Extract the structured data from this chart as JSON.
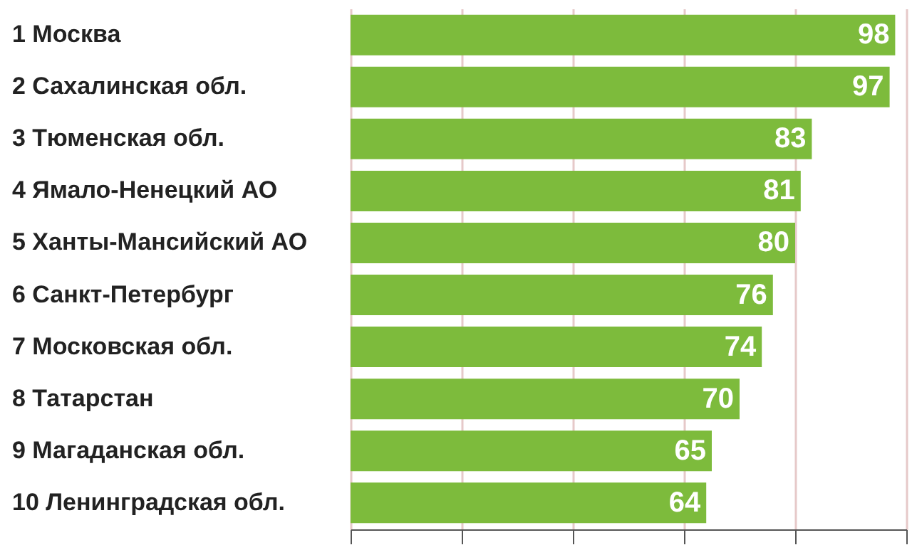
{
  "chart_data": {
    "type": "bar",
    "orientation": "horizontal",
    "categories": [
      "1  Москва",
      "2  Сахалинская обл.",
      "3  Тюменская обл.",
      "4  Ямало-Ненецкий АО",
      "5  Ханты-Мансийский АО",
      "6  Санкт-Петербург",
      "7  Московская обл.",
      "8  Татарстан",
      "9  Магаданская обл.",
      "10  Ленинградская обл."
    ],
    "values": [
      98,
      97,
      83,
      81,
      80,
      76,
      74,
      70,
      65,
      64
    ],
    "color": "#7dbb3c",
    "xlim": [
      0,
      100
    ],
    "xticks": [
      {
        "value": 0,
        "label": null
      },
      {
        "value": 20,
        "label": null
      },
      {
        "value": 40,
        "label": null
      },
      {
        "value": 60,
        "label": null
      },
      {
        "value": 80,
        "label": null
      },
      {
        "value": 100,
        "label": null
      }
    ],
    "grid": "x",
    "tick_labels": "y",
    "data_labels": true
  }
}
